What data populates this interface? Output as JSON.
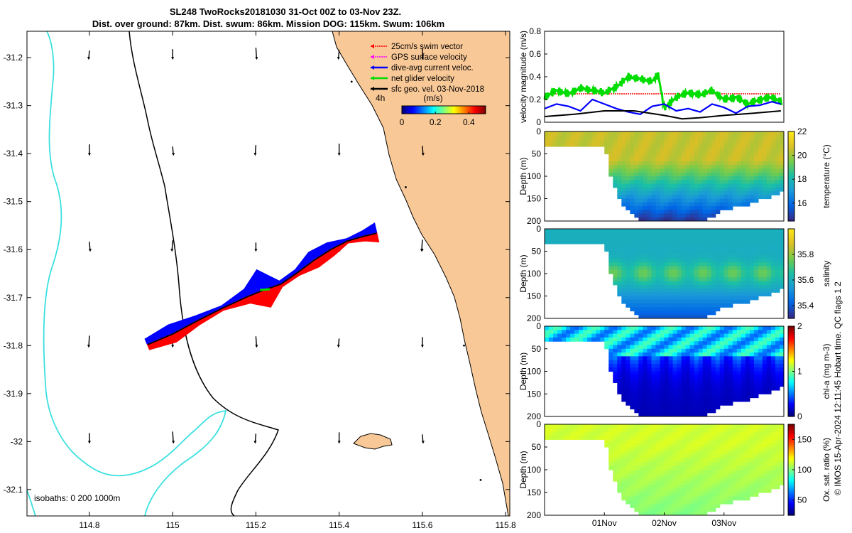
{
  "title": {
    "line1": "SL248 TwoRocks20181030 31-Oct 00Z to 03-Nov 23Z.",
    "line2": "Dist. over ground: 87km. Dist. swum: 86km. Mission DOG: 115km. Swum: 106km"
  },
  "map": {
    "xticks": [
      "114.8",
      "115",
      "115.2",
      "115.4",
      "115.6",
      "115.8"
    ],
    "xtick_values": [
      114.8,
      115.0,
      115.2,
      115.4,
      115.6,
      115.8
    ],
    "yticks": [
      "-31.2",
      "-31.3",
      "-31.4",
      "-31.5",
      "-31.6",
      "-31.7",
      "-31.8",
      "-31.9",
      "-32",
      "-32.1"
    ],
    "ytick_values": [
      -31.2,
      -31.3,
      -31.4,
      -31.5,
      -31.6,
      -31.7,
      -31.8,
      -31.9,
      -32.0,
      -32.1
    ],
    "xlim": [
      114.65,
      115.81
    ],
    "ylim": [
      -32.155,
      -31.145
    ],
    "legend": [
      {
        "label": "25cm/s swim vector",
        "color": "#ff0000",
        "style": "dotted"
      },
      {
        "label": "GPS surface velocity",
        "color": "#ff00ff",
        "style": "dotted"
      },
      {
        "label": "dive-avg current veloc.",
        "color": "#0000ff",
        "style": "solid"
      },
      {
        "label": "net glider velocity",
        "color": "#00dd00",
        "style": "solid"
      },
      {
        "label": "sfc geo. vel. 03-Nov-2018",
        "color": "#000000",
        "style": "solid"
      }
    ],
    "colorbar": {
      "prefix": "4h",
      "unit": "(m/s)",
      "ticks": [
        "0",
        "0.2",
        "0.4"
      ],
      "tick_values": [
        0,
        0.2,
        0.4
      ],
      "range": [
        0,
        0.5
      ]
    },
    "isobath_note": "isobaths: 0   200  1000m",
    "track": [
      [
        114.94,
        -31.798
      ],
      [
        115.0,
        -31.776
      ],
      [
        115.06,
        -31.748
      ],
      [
        115.12,
        -31.722
      ],
      [
        115.18,
        -31.698
      ],
      [
        115.22,
        -31.684
      ],
      [
        115.26,
        -31.672
      ],
      [
        115.3,
        -31.648
      ],
      [
        115.34,
        -31.622
      ],
      [
        115.38,
        -31.6
      ],
      [
        115.42,
        -31.582
      ],
      [
        115.46,
        -31.572
      ],
      [
        115.49,
        -31.566
      ]
    ],
    "colors": {
      "land": "#f9c897",
      "coast": "#000000",
      "isobath_200": "#000000",
      "isobath_1000": "#3ce0e0",
      "current": "#0000ff",
      "swim": "#ff0000",
      "net": "#00dd00"
    }
  },
  "chart_data": [
    {
      "type": "line",
      "title": "velocity magnitude",
      "ylabel": "velocity magnitude (m/s)",
      "ylim": [
        0,
        0.8
      ],
      "yticks": [
        "0",
        "0.2",
        "0.4",
        "0.6",
        "0.8"
      ],
      "ytick_values": [
        0,
        0.2,
        0.4,
        0.6,
        0.8
      ],
      "xlim": [
        0,
        4
      ],
      "x_unit": "days since 31-Oct 00Z",
      "series": [
        {
          "name": "25cm/s swim vector",
          "color": "#ff0000",
          "x": [
            0,
            0.5,
            1,
            1.5,
            1.95,
            2,
            2.5,
            3,
            3.5,
            3.95
          ],
          "y": [
            0.25,
            0.25,
            0.25,
            0.25,
            0.25,
            0.25,
            0.25,
            0.25,
            0.25,
            0.25
          ]
        },
        {
          "name": "net glider velocity",
          "color": "#00dd00",
          "x": [
            0,
            0.2,
            0.4,
            0.6,
            0.8,
            1.0,
            1.2,
            1.4,
            1.6,
            1.8,
            1.9,
            2.0,
            2.2,
            2.4,
            2.6,
            2.8,
            3.0,
            3.2,
            3.4,
            3.6,
            3.8,
            3.95
          ],
          "y": [
            0.22,
            0.28,
            0.25,
            0.3,
            0.28,
            0.26,
            0.31,
            0.4,
            0.38,
            0.36,
            0.42,
            0.12,
            0.22,
            0.26,
            0.24,
            0.28,
            0.2,
            0.22,
            0.16,
            0.2,
            0.22,
            0.18
          ]
        },
        {
          "name": "dive-avg current veloc.",
          "color": "#0000ff",
          "x": [
            0,
            0.2,
            0.4,
            0.6,
            0.8,
            1.0,
            1.2,
            1.4,
            1.6,
            1.8,
            2.0,
            2.2,
            2.4,
            2.6,
            2.8,
            3.0,
            3.2,
            3.4,
            3.6,
            3.8,
            3.95
          ],
          "y": [
            0.12,
            0.16,
            0.14,
            0.1,
            0.2,
            0.16,
            0.12,
            0.09,
            0.07,
            0.14,
            0.16,
            0.1,
            0.12,
            0.09,
            0.16,
            0.13,
            0.08,
            0.14,
            0.15,
            0.18,
            0.16
          ]
        },
        {
          "name": "sfc geo. vel.",
          "color": "#000000",
          "x": [
            0,
            0.5,
            1,
            1.5,
            2,
            2.3,
            2.6,
            3,
            3.5,
            3.95
          ],
          "y": [
            0.05,
            0.07,
            0.1,
            0.1,
            0.06,
            0.03,
            0.04,
            0.06,
            0.08,
            0.1
          ]
        }
      ]
    },
    {
      "type": "heatmap",
      "variable": "temperature",
      "ylabel": "Depth (m)",
      "clabel": "temperature (°C)",
      "yticks": [
        "0",
        "50",
        "100",
        "150",
        "200"
      ],
      "ytick_values": [
        0,
        50,
        100,
        150,
        200
      ],
      "crange": [
        14.5,
        22
      ],
      "cticks": [
        "16",
        "18",
        "20",
        "22"
      ],
      "ctick_values": [
        16,
        18,
        20,
        22
      ],
      "surface": 20.5,
      "bottom": 15.5
    },
    {
      "type": "heatmap",
      "variable": "salinity",
      "ylabel": "Depth (m)",
      "clabel": "salinity",
      "yticks": [
        "0",
        "50",
        "100",
        "150",
        "200"
      ],
      "ytick_values": [
        0,
        50,
        100,
        150,
        200
      ],
      "crange": [
        35.3,
        36.0
      ],
      "cticks": [
        "35.4",
        "35.6",
        "35.8"
      ],
      "ctick_values": [
        35.4,
        35.6,
        35.8
      ],
      "surface": 35.6,
      "bottom": 35.45
    },
    {
      "type": "heatmap",
      "variable": "chl-a",
      "ylabel": "Depth (m)",
      "clabel": "chl-a (mg m-3)",
      "yticks": [
        "0",
        "50",
        "100",
        "150",
        "200"
      ],
      "ytick_values": [
        0,
        50,
        100,
        150,
        200
      ],
      "crange": [
        0,
        2
      ],
      "cticks": [
        "0",
        "1",
        "2"
      ],
      "ctick_values": [
        0,
        1,
        2
      ],
      "surface": 0.75,
      "bottom": 0.1
    },
    {
      "type": "heatmap",
      "variable": "oxygen",
      "ylabel": "Depth (m)",
      "clabel": "Ox. sat. ratio (%)",
      "yticks": [
        "0",
        "50",
        "100",
        "150",
        "200"
      ],
      "ytick_values": [
        0,
        50,
        100,
        150,
        200
      ],
      "crange": [
        25,
        175
      ],
      "cticks": [
        "50",
        "100",
        "150"
      ],
      "ctick_values": [
        50,
        100,
        150
      ],
      "surface": 112,
      "bottom": 100,
      "xticks": [
        "01Nov",
        "02Nov",
        "03Nov"
      ],
      "xtick_values": [
        1,
        2,
        3
      ]
    }
  ],
  "profile": {
    "xlim": [
      0,
      4
    ],
    "x_unit": "days since 31-Oct 00Z",
    "bottom_depth": [
      [
        0,
        30
      ],
      [
        0.3,
        30
      ],
      [
        0.6,
        30
      ],
      [
        0.8,
        32
      ],
      [
        0.95,
        30
      ],
      [
        1.0,
        30
      ],
      [
        1.05,
        55
      ],
      [
        1.12,
        100
      ],
      [
        1.2,
        130
      ],
      [
        1.3,
        155
      ],
      [
        1.4,
        175
      ],
      [
        1.55,
        192
      ],
      [
        1.75,
        196
      ],
      [
        1.9,
        197
      ],
      [
        2.0,
        198
      ],
      [
        2.2,
        196
      ],
      [
        2.4,
        197
      ],
      [
        2.6,
        195
      ],
      [
        2.8,
        188
      ],
      [
        3.0,
        172
      ],
      [
        3.2,
        165
      ],
      [
        3.4,
        160
      ],
      [
        3.6,
        150
      ],
      [
        3.8,
        140
      ],
      [
        3.95,
        130
      ]
    ]
  },
  "side_caption": "© IMOS 15-Apr-2024 12:11:45 Hobart time. QC flags 1  2"
}
